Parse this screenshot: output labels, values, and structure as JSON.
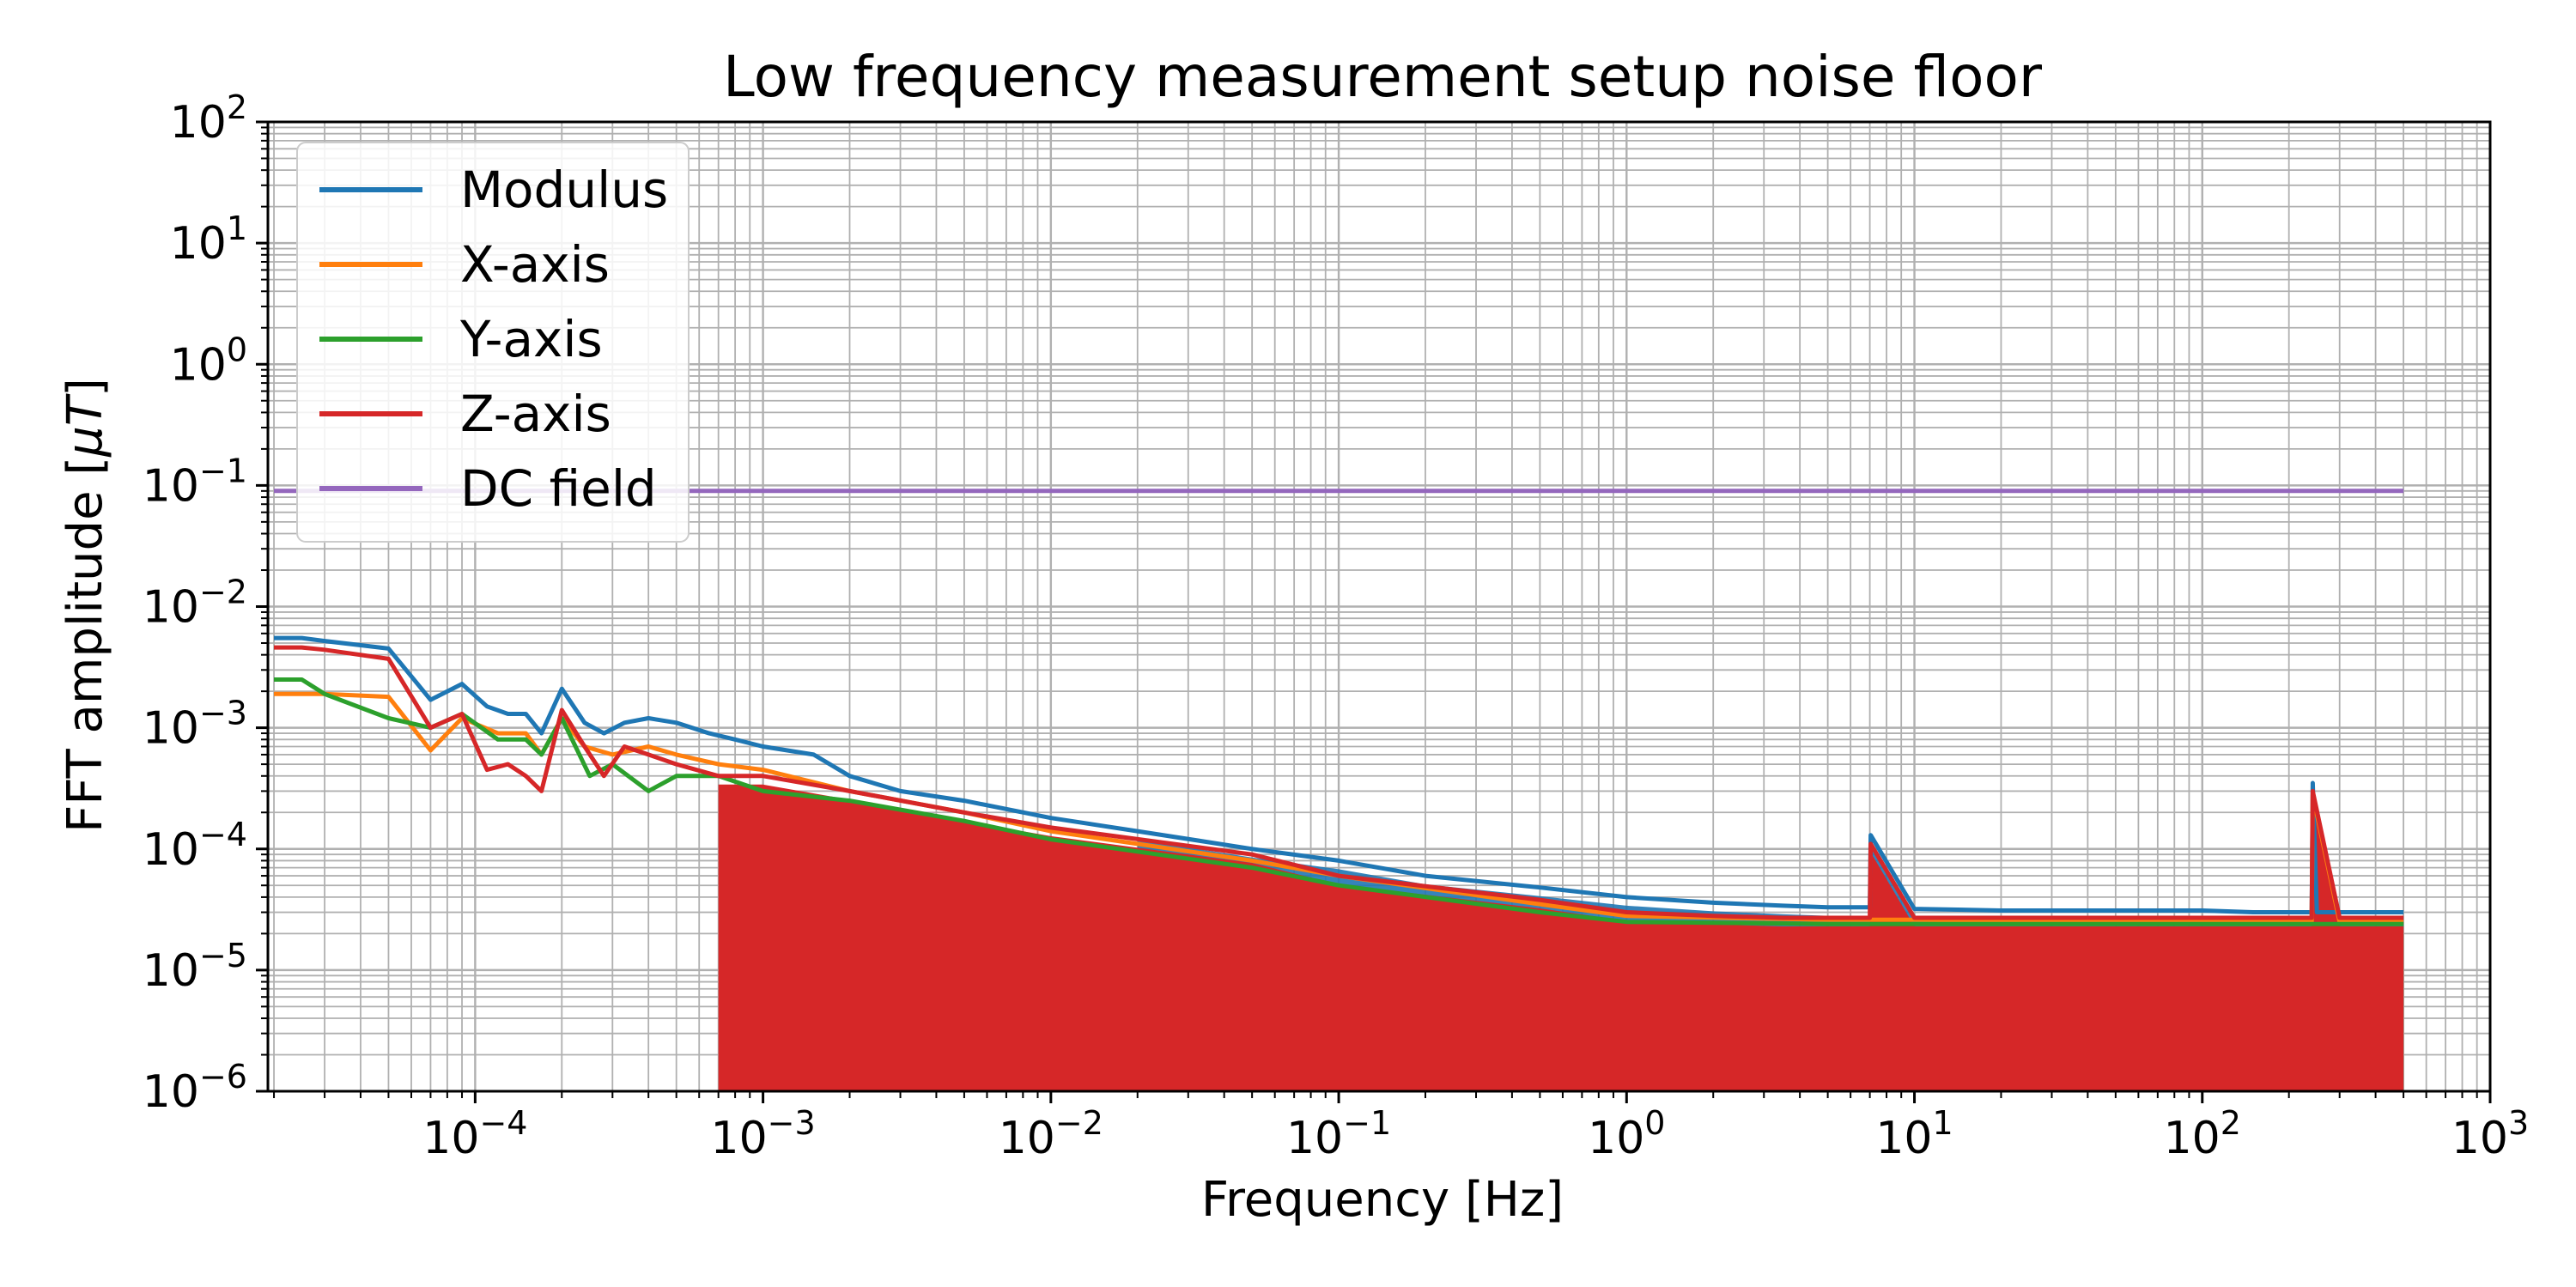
{
  "chart_data": {
    "type": "line",
    "title": "Low frequency measurement setup noise floor",
    "xlabel": "Frequency [Hz]",
    "ylabel_prefix": "FFT amplitude [",
    "ylabel_unit": "μT",
    "ylabel_suffix": "]",
    "xscale": "log",
    "yscale": "log",
    "xlim_exp": [
      -4.72,
      3.0
    ],
    "ylim_exp": [
      -6,
      2
    ],
    "grid": true,
    "grid_minor": true,
    "legend_position": "upper-left",
    "x_ticks": [
      {
        "base": "10",
        "exp": "−4"
      },
      {
        "base": "10",
        "exp": "−3"
      },
      {
        "base": "10",
        "exp": "−2"
      },
      {
        "base": "10",
        "exp": "−1"
      },
      {
        "base": "10",
        "exp": "0"
      },
      {
        "base": "10",
        "exp": "1"
      },
      {
        "base": "10",
        "exp": "2"
      },
      {
        "base": "10",
        "exp": "3"
      }
    ],
    "y_ticks": [
      {
        "base": "10",
        "exp": "−6"
      },
      {
        "base": "10",
        "exp": "−5"
      },
      {
        "base": "10",
        "exp": "−4"
      },
      {
        "base": "10",
        "exp": "−3"
      },
      {
        "base": "10",
        "exp": "−2"
      },
      {
        "base": "10",
        "exp": "−1"
      },
      {
        "base": "10",
        "exp": "0"
      },
      {
        "base": "10",
        "exp": "1"
      },
      {
        "base": "10",
        "exp": "2"
      }
    ],
    "series": [
      {
        "name": "Modulus",
        "color": "#1f77b4",
        "x": [
          2e-05,
          2.5e-05,
          3e-05,
          4e-05,
          5e-05,
          7e-05,
          9e-05,
          0.00011,
          0.00013,
          0.00015,
          0.00017,
          0.0002,
          0.00024,
          0.00028,
          0.00033,
          0.0004,
          0.0005,
          0.00065,
          0.0008,
          0.001,
          0.0015,
          0.002,
          0.003,
          0.005,
          0.01,
          0.02,
          0.05,
          0.1,
          0.2,
          0.5,
          1,
          2,
          3.5,
          5,
          7,
          7.05,
          10,
          20,
          50,
          100,
          150,
          200,
          240,
          242,
          250,
          300,
          400,
          500
        ],
        "y": [
          0.0055,
          0.0055,
          0.0052,
          0.0048,
          0.0045,
          0.0017,
          0.0023,
          0.0015,
          0.0013,
          0.0013,
          0.0009,
          0.0021,
          0.0011,
          0.0009,
          0.0011,
          0.0012,
          0.0011,
          0.0009,
          0.0008,
          0.0007,
          0.0006,
          0.0004,
          0.0003,
          0.00025,
          0.00018,
          0.00014,
          0.0001,
          8e-05,
          6e-05,
          4.8e-05,
          4e-05,
          3.6e-05,
          3.4e-05,
          3.3e-05,
          3.3e-05,
          0.00013,
          3.2e-05,
          3.1e-05,
          3.1e-05,
          3.1e-05,
          3e-05,
          3e-05,
          3e-05,
          0.00035,
          3e-05,
          3e-05,
          3e-05,
          3e-05
        ]
      },
      {
        "name": "X-axis",
        "color": "#ff7f0e",
        "x": [
          2e-05,
          3e-05,
          5e-05,
          7e-05,
          9e-05,
          0.00012,
          0.00015,
          0.00017,
          0.0002,
          0.00024,
          0.0003,
          0.0004,
          0.0005,
          0.0007,
          0.001,
          0.002,
          0.005,
          0.01,
          0.05,
          0.1,
          0.5,
          1,
          5,
          10,
          100,
          240,
          242,
          300,
          500
        ],
        "y": [
          0.0019,
          0.0019,
          0.0018,
          0.00065,
          0.0012,
          0.0009,
          0.0009,
          0.0006,
          0.0012,
          0.0007,
          0.0006,
          0.0007,
          0.0006,
          0.0005,
          0.00045,
          0.0003,
          0.0002,
          0.00014,
          8e-05,
          6e-05,
          3.5e-05,
          2.8e-05,
          2.6e-05,
          2.6e-05,
          2.5e-05,
          2.5e-05,
          0.00028,
          2.5e-05,
          2.5e-05
        ]
      },
      {
        "name": "Y-axis",
        "color": "#2ca02c",
        "x": [
          2e-05,
          2.5e-05,
          3e-05,
          5e-05,
          7e-05,
          9e-05,
          0.00012,
          0.00015,
          0.00017,
          0.0002,
          0.00025,
          0.0003,
          0.0004,
          0.0005,
          0.0007,
          0.001,
          0.002,
          0.005,
          0.01,
          0.05,
          0.1,
          0.5,
          1,
          5,
          10,
          100,
          500
        ],
        "y": [
          0.0025,
          0.0025,
          0.0019,
          0.0012,
          0.001,
          0.0013,
          0.0008,
          0.0008,
          0.0006,
          0.0012,
          0.0004,
          0.0005,
          0.0003,
          0.0004,
          0.0004,
          0.0003,
          0.00025,
          0.00017,
          0.00012,
          7e-05,
          5e-05,
          3e-05,
          2.5e-05,
          2.4e-05,
          2.4e-05,
          2.4e-05,
          2.4e-05
        ]
      },
      {
        "name": "Z-axis",
        "color": "#d62728",
        "x": [
          2e-05,
          2.5e-05,
          3e-05,
          5e-05,
          7e-05,
          9e-05,
          0.00011,
          0.00013,
          0.00015,
          0.00017,
          0.0002,
          0.00024,
          0.00028,
          0.00033,
          0.0004,
          0.0005,
          0.0007,
          0.001,
          0.002,
          0.005,
          0.01,
          0.05,
          0.1,
          0.5,
          1,
          2,
          3.5,
          5,
          7,
          7.05,
          10,
          100,
          240,
          242,
          300,
          500
        ],
        "y": [
          0.0046,
          0.0046,
          0.0044,
          0.0037,
          0.001,
          0.0013,
          0.00045,
          0.0005,
          0.0004,
          0.0003,
          0.0014,
          0.0007,
          0.0004,
          0.0007,
          0.0006,
          0.0005,
          0.0004,
          0.0004,
          0.0003,
          0.0002,
          0.00015,
          9e-05,
          6e-05,
          3.8e-05,
          3e-05,
          2.8e-05,
          2.7e-05,
          2.7e-05,
          2.7e-05,
          0.00011,
          2.7e-05,
          2.7e-05,
          2.7e-05,
          0.0003,
          2.7e-05,
          2.7e-05
        ]
      },
      {
        "name": "DC field",
        "color": "#9467bd",
        "x": [
          2e-05,
          500
        ],
        "y": [
          0.09,
          0.09
        ]
      }
    ]
  }
}
